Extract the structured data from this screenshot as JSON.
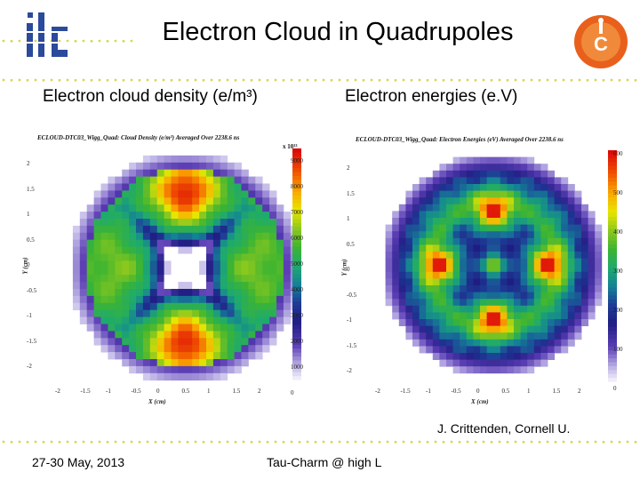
{
  "slide": {
    "title": "Electron Cloud in Quadrupoles",
    "left_caption": "Electron cloud density (e/m³)",
    "right_caption": "Electron energies (e.V)",
    "credit": "J. Crittenden, Cornell U.",
    "footer_left": "27-30 May, 2013",
    "footer_center": "Tau-Charm @ high L",
    "logo_left_text": "ilc",
    "logo_right_text": "CLIC"
  },
  "colors": {
    "dots": "#d8d84a",
    "ilc_blue": "#2b4a9b",
    "clic_orange": "#e8601c"
  },
  "density_plot": {
    "title": "ECLOUD-DTC03_Wigg_Quad: Cloud Density (e/m³) Averaged Over 2238.6 ns",
    "exponent": "x 10¹³",
    "x_label": "X (cm)",
    "y_label": "Y (cm)",
    "x_ticks": [
      "-2",
      "-1.5",
      "-1",
      "-0.5",
      "0",
      "0.5",
      "1",
      "1.5",
      "2"
    ],
    "y_ticks": [
      "2",
      "1.5",
      "1",
      "0.5",
      "0",
      "-0.5",
      "-1",
      "-1.5",
      "-2"
    ],
    "colorbar_ticks": [
      "9000",
      "8000",
      "7000",
      "6000",
      "5000",
      "4000",
      "3000",
      "2000",
      "1000",
      "0"
    ]
  },
  "energy_plot": {
    "title": "ECLOUD-DTC03_Wigg_Quad: Electron Energies (eV) Averaged Over 2238.6 ns",
    "x_label": "X (cm)",
    "y_label": "Y (cm)",
    "x_ticks": [
      "-2",
      "-1.5",
      "-1",
      "-0.5",
      "0",
      "0.5",
      "1",
      "1.5",
      "2"
    ],
    "y_ticks": [
      "2",
      "1.5",
      "1",
      "0.5",
      "0",
      "-0.5",
      "-1",
      "-1.5",
      "-2"
    ],
    "colorbar_ticks": [
      "600",
      "500",
      "400",
      "300",
      "200",
      "100",
      "0"
    ]
  }
}
